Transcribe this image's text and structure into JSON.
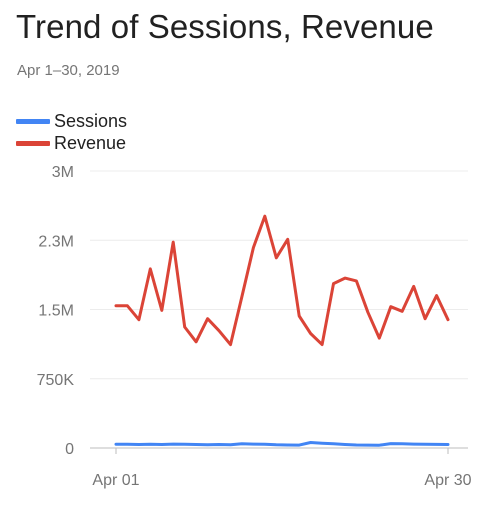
{
  "header": {
    "title": "Trend of Sessions, Revenue",
    "date_range": "Apr 1–30, 2019"
  },
  "legend": [
    {
      "label": "Sessions",
      "color": "#4285f4"
    },
    {
      "label": "Revenue",
      "color": "#db4437"
    }
  ],
  "chart_data": {
    "type": "line",
    "title": "Trend of Sessions, Revenue",
    "subtitle": "Apr 1–30, 2019",
    "x_tick_labels": [
      "Apr 01",
      "Apr 30"
    ],
    "x": [
      "Apr 01",
      "Apr 02",
      "Apr 03",
      "Apr 04",
      "Apr 05",
      "Apr 06",
      "Apr 07",
      "Apr 08",
      "Apr 09",
      "Apr 10",
      "Apr 11",
      "Apr 12",
      "Apr 13",
      "Apr 14",
      "Apr 15",
      "Apr 16",
      "Apr 17",
      "Apr 18",
      "Apr 19",
      "Apr 20",
      "Apr 21",
      "Apr 22",
      "Apr 23",
      "Apr 24",
      "Apr 25",
      "Apr 26",
      "Apr 27",
      "Apr 28",
      "Apr 29",
      "Apr 30"
    ],
    "y_ticks": [
      {
        "value": 0,
        "label": "0"
      },
      {
        "value": 750000,
        "label": "750K"
      },
      {
        "value": 1500000,
        "label": "1.5M"
      },
      {
        "value": 2250000,
        "label": "2.3M"
      },
      {
        "value": 3000000,
        "label": "3M"
      }
    ],
    "ylim": [
      0,
      3000000
    ],
    "grid": true,
    "legend_position": "top-left",
    "series": [
      {
        "name": "Sessions",
        "color": "#4285f4",
        "values": [
          40000,
          40000,
          38000,
          40000,
          38000,
          42000,
          40000,
          38000,
          36000,
          38000,
          36000,
          45000,
          42000,
          40000,
          35000,
          33000,
          31000,
          60000,
          52000,
          45000,
          38000,
          33000,
          31000,
          30000,
          48000,
          46000,
          42000,
          40000,
          39000,
          38000
        ]
      },
      {
        "name": "Revenue",
        "color": "#db4437",
        "values": [
          1540000,
          1540000,
          1390000,
          1940000,
          1490000,
          2230000,
          1310000,
          1150000,
          1400000,
          1270000,
          1120000,
          1640000,
          2170000,
          2510000,
          2060000,
          2260000,
          1430000,
          1240000,
          1120000,
          1780000,
          1840000,
          1810000,
          1470000,
          1190000,
          1530000,
          1480000,
          1750000,
          1400000,
          1650000,
          1390000
        ]
      }
    ]
  }
}
